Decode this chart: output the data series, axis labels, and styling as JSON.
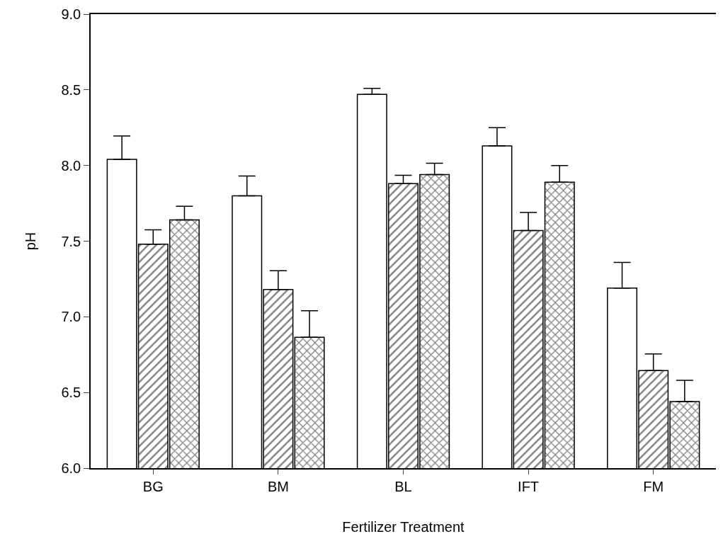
{
  "chart_data": {
    "type": "bar",
    "xlabel": "Fertilizer Treatment",
    "ylabel": "pH",
    "categories": [
      "BG",
      "BM",
      "BL",
      "IFT",
      "FM"
    ],
    "series": [
      {
        "color": "#ffffff",
        "values": [
          8.04,
          7.8,
          8.47,
          8.13,
          7.19
        ],
        "errors": [
          [
            8.04,
            8.195
          ],
          [
            7.8,
            7.93
          ],
          [
            8.47,
            8.51
          ],
          [
            8.13,
            8.25
          ],
          [
            7.19,
            7.36
          ]
        ]
      },
      {
        "color": "#000000",
        "values": [
          7.48,
          7.18,
          7.88,
          7.57,
          6.645
        ],
        "errors": [
          [
            7.48,
            7.575
          ],
          [
            7.18,
            7.305
          ],
          [
            7.88,
            7.935
          ],
          [
            7.57,
            7.69
          ],
          [
            6.645,
            6.755
          ]
        ]
      },
      {
        "color": "#000000",
        "values": [
          7.64,
          6.865,
          7.94,
          7.89,
          6.44
        ],
        "errors": [
          [
            7.64,
            7.73
          ],
          [
            6.865,
            7.04
          ],
          [
            7.94,
            8.015
          ],
          [
            7.89,
            8.0
          ],
          [
            6.44,
            6.58
          ]
        ]
      }
    ],
    "ylim": [
      6.0,
      9.0
    ],
    "yticks": [
      {
        "value": 6,
        "label": "6.0"
      },
      {
        "value": 6.5,
        "label": "6.5"
      },
      {
        "value": 7,
        "label": "7.0"
      },
      {
        "value": 7.5,
        "label": "7.5"
      },
      {
        "value": 8,
        "label": "8.0"
      },
      {
        "value": 8.5,
        "label": "8.5"
      },
      {
        "value": 9,
        "label": "9.0"
      }
    ]
  }
}
